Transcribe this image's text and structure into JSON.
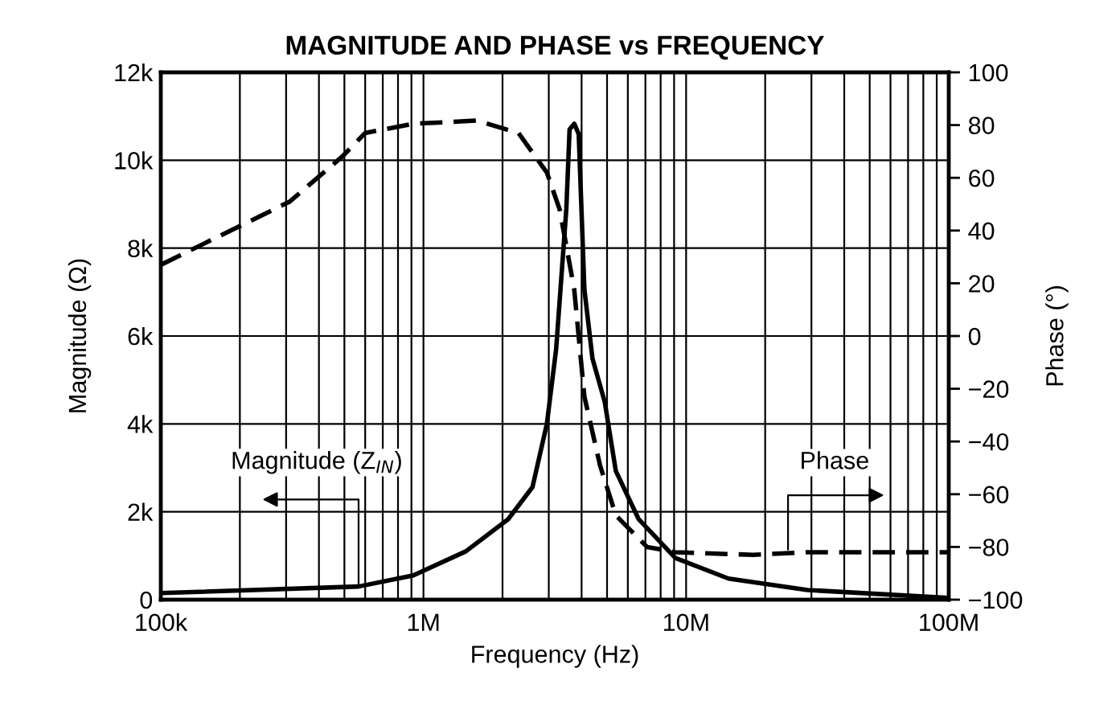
{
  "chart_data": {
    "type": "line",
    "title": "MAGNITUDE AND PHASE vs FREQUENCY",
    "xlabel": "Frequency (Hz)",
    "ylabel": "Magnitude (Ω)",
    "y2label": "Phase (°)",
    "log": "x",
    "grid": true,
    "legend": false,
    "marker": "none",
    "xlim": [
      100000,
      100000000
    ],
    "xticks": [
      {
        "value": 100000,
        "label": "100k"
      },
      {
        "value": 1000000,
        "label": "1M"
      },
      {
        "value": 10000000,
        "label": "10M"
      },
      {
        "value": 100000000,
        "label": "100M"
      }
    ],
    "ylim": [
      0,
      12000
    ],
    "yticks": [
      0,
      {
        "value": 2000,
        "label": "2k"
      },
      {
        "value": 4000,
        "label": "4k"
      },
      {
        "value": 6000,
        "label": "6k"
      },
      {
        "value": 8000,
        "label": "8k"
      },
      {
        "value": 10000,
        "label": "10k"
      },
      {
        "value": 12000,
        "label": "12k"
      }
    ],
    "y2lim": [
      -100,
      100
    ],
    "y2ticks": [
      {
        "value": -100,
        "label": "−100"
      },
      {
        "value": -80,
        "label": "−80"
      },
      {
        "value": -60,
        "label": "−60"
      },
      {
        "value": -40,
        "label": "−40"
      },
      {
        "value": -20,
        "label": "−20"
      },
      0,
      20,
      40,
      60,
      80,
      100
    ],
    "annotations": [
      "Magnitude (Z$_{IN}$)",
      "Phase"
    ],
    "series": [
      {
        "color": "#000000",
        "line_style": "solid",
        "x": [
          100000,
          566000,
          912000,
          1450000,
          2100000,
          2600000,
          2950000,
          3200000,
          3500000,
          3600000,
          3750000,
          3900000,
          4100000,
          4400000,
          4900000,
          5400000,
          6600000,
          9100000,
          14500000,
          29000000,
          100000000
        ],
        "values": [
          150,
          300,
          550,
          1100,
          1830,
          2560,
          4000,
          5700,
          8900,
          10700,
          10830,
          10600,
          7060,
          5490,
          4500,
          2930,
          1830,
          950,
          480,
          220,
          40
        ]
      },
      {
        "color": "#000000",
        "line_style": "dashed",
        "axis": "y2",
        "x": [
          100000,
          310000,
          490000,
          600000,
          912000,
          1600000,
          2300000,
          2950000,
          3300000,
          3750000,
          4100000,
          4700000,
          5400000,
          7100000,
          9100000,
          18000000,
          29000000,
          100000000
        ],
        "values": [
          27,
          51,
          68,
          77,
          80.5,
          81.7,
          77,
          62,
          48,
          17.7,
          -23,
          -49,
          -68,
          -80,
          -82,
          -83,
          -82,
          -82
        ]
      }
    ]
  }
}
